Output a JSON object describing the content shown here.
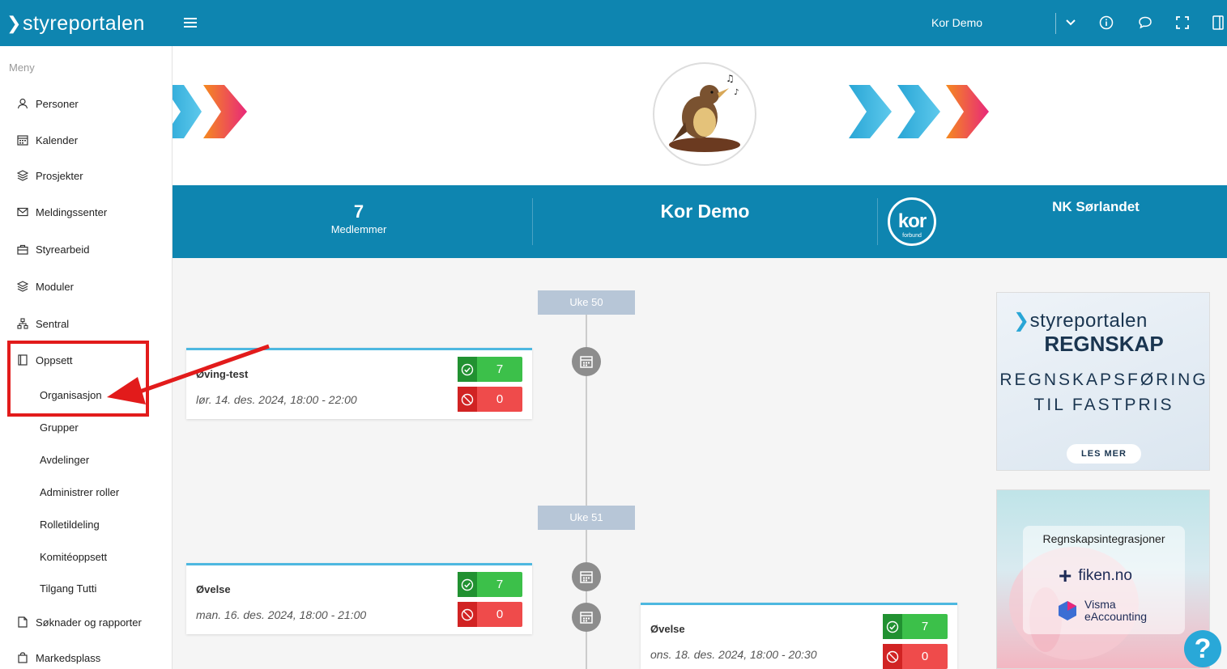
{
  "app": {
    "logo_text": "styreportalen"
  },
  "header": {
    "org_name": "Kor Demo"
  },
  "sidebar": {
    "menu_title": "Meny",
    "items": [
      {
        "label": "Personer",
        "icon": "person-icon"
      },
      {
        "label": "Kalender",
        "icon": "calendar-icon"
      },
      {
        "label": "Prosjekter",
        "icon": "layers-icon"
      },
      {
        "label": "Meldingssenter",
        "icon": "mail-icon"
      },
      {
        "label": "Styrearbeid",
        "icon": "briefcase-icon"
      },
      {
        "label": "Moduler",
        "icon": "layers-icon"
      },
      {
        "label": "Sentral",
        "icon": "hierarchy-icon"
      },
      {
        "label": "Oppsett",
        "icon": "book-icon"
      },
      {
        "label": "Søknader og rapporter",
        "icon": "document-icon"
      },
      {
        "label": "Markedsplass",
        "icon": "bag-icon"
      }
    ],
    "subitems": [
      "Organisasjon",
      "Grupper",
      "Avdelinger",
      "Administrer roller",
      "Rolletildeling",
      "Komitéoppsett",
      "Tilgang Tutti"
    ]
  },
  "stats": {
    "members_count": "7",
    "members_label": "Medlemmer",
    "org_title": "Kor Demo",
    "federation_logo_text": "kor",
    "federation_logo_sub": "forbund",
    "region": "NK Sørlandet"
  },
  "timeline": {
    "weeks": [
      "Uke 50",
      "Uke 51"
    ],
    "events": [
      {
        "title": "Øving-test",
        "date": "lør. 14. des. 2024, 18:00 - 22:00",
        "yes": "7",
        "no": "0"
      },
      {
        "title": "Øvelse",
        "date": "man. 16. des. 2024, 18:00 - 21:00",
        "yes": "7",
        "no": "0"
      },
      {
        "title": "Øvelse",
        "date": "ons. 18. des. 2024, 18:00 - 20:30",
        "yes": "7",
        "no": "0"
      }
    ]
  },
  "ads": {
    "ad1": {
      "brand": "styreportalen",
      "headline": "REGNSKAP",
      "line1": "REGNSKAPSFØRING",
      "line2": "TIL FASTPRIS",
      "cta": "LES MER"
    },
    "ad2": {
      "heading": "Regnskapsintegrasjoner",
      "fiken": "fiken.no",
      "visma_line1": "Visma",
      "visma_line2": "eAccounting"
    }
  },
  "help": {
    "label": "?"
  },
  "colors": {
    "primary": "#0e85b0",
    "accept": "#3cc04a",
    "decline": "#ef4b4b",
    "highlight": "#e21b1b"
  }
}
